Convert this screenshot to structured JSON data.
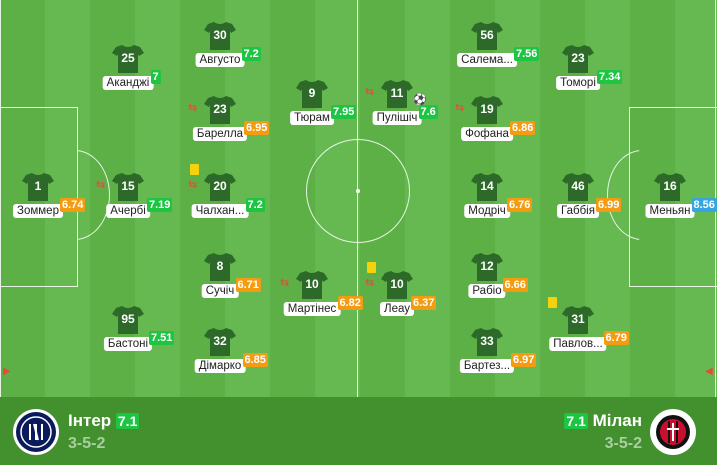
{
  "colors": {
    "rating_green": "#1ec543",
    "rating_orange": "#f39c12",
    "rating_blue": "#35a4e0",
    "shirt": "#2d6a2a"
  },
  "home": {
    "name": "Інтер",
    "rating": "7.1",
    "formation": "3-5-2",
    "logo": "inter-logo",
    "players": [
      {
        "number": "1",
        "name": "Зоммер",
        "rating": "6.74",
        "tier": "orange"
      },
      {
        "number": "25",
        "name": "Аканджі",
        "rating": "7",
        "tier": "green"
      },
      {
        "number": "15",
        "name": "Ачербі",
        "rating": "7.19",
        "tier": "green",
        "sub": true
      },
      {
        "number": "95",
        "name": "Бастоні",
        "rating": "7.51",
        "tier": "green"
      },
      {
        "number": "30",
        "name": "Августо",
        "rating": "7.2",
        "tier": "green"
      },
      {
        "number": "23",
        "name": "Барелла",
        "rating": "6.95",
        "tier": "orange",
        "sub": true
      },
      {
        "number": "20",
        "name": "Чалхан...",
        "rating": "7.2",
        "tier": "green",
        "sub": true,
        "yellow": true
      },
      {
        "number": "8",
        "name": "Сучіч",
        "rating": "6.71",
        "tier": "orange"
      },
      {
        "number": "32",
        "name": "Дімарко",
        "rating": "6.85",
        "tier": "orange"
      },
      {
        "number": "9",
        "name": "Тюрам",
        "rating": "7.95",
        "tier": "green"
      },
      {
        "number": "10",
        "name": "Мартінес",
        "rating": "6.82",
        "tier": "orange",
        "sub": true
      }
    ]
  },
  "away": {
    "name": "Мілан",
    "rating": "7.1",
    "formation": "3-5-2",
    "logo": "milan-logo",
    "players": [
      {
        "number": "11",
        "name": "Пулішіч",
        "rating": "7.6",
        "tier": "green",
        "sub": true,
        "goal": true
      },
      {
        "number": "10",
        "name": "Леау",
        "rating": "6.37",
        "tier": "orange",
        "sub": true,
        "yellow": true
      },
      {
        "number": "56",
        "name": "Салема...",
        "rating": "7.56",
        "tier": "green"
      },
      {
        "number": "19",
        "name": "Фофана",
        "rating": "6.86",
        "tier": "orange",
        "sub": true
      },
      {
        "number": "14",
        "name": "Модріч",
        "rating": "6.76",
        "tier": "orange"
      },
      {
        "number": "12",
        "name": "Рабіо",
        "rating": "6.66",
        "tier": "orange"
      },
      {
        "number": "33",
        "name": "Бартез...",
        "rating": "6.97",
        "tier": "orange"
      },
      {
        "number": "23",
        "name": "Томорі",
        "rating": "7.34",
        "tier": "green"
      },
      {
        "number": "46",
        "name": "Габбія",
        "rating": "6.99",
        "tier": "orange"
      },
      {
        "number": "31",
        "name": "Павлов...",
        "rating": "6.79",
        "tier": "orange",
        "yellow": true
      },
      {
        "number": "16",
        "name": "Меньян",
        "rating": "8.56",
        "tier": "blue"
      }
    ]
  }
}
